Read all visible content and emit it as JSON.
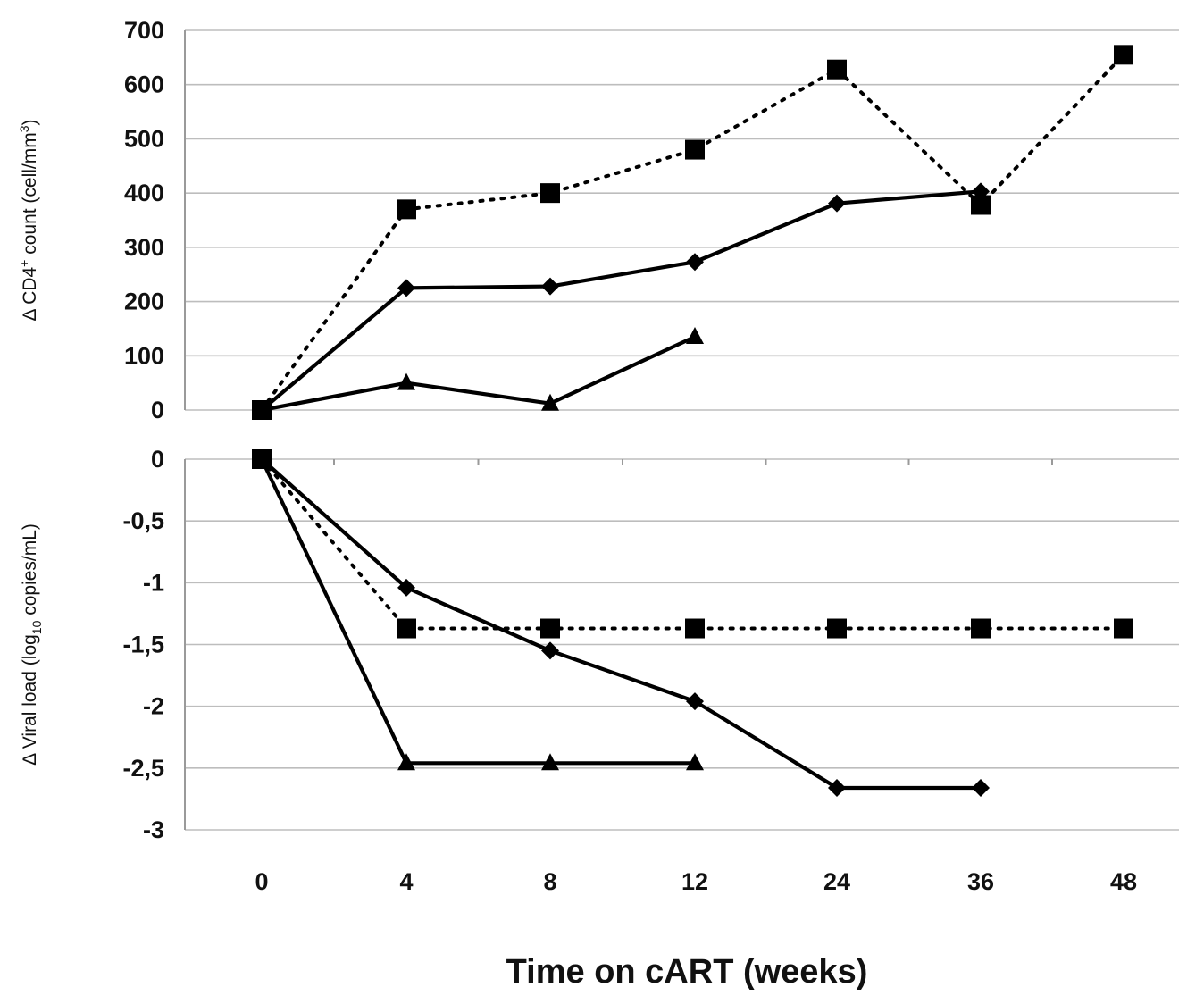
{
  "x_axis": {
    "title": "Time on cART (weeks)",
    "tick_labels": [
      "0",
      "4",
      "8",
      "12",
      "24",
      "36",
      "48"
    ]
  },
  "chart_data": [
    {
      "type": "line",
      "ylabel_parts": [
        "Δ CD4",
        "+",
        " count (cell/mm",
        "3",
        ")"
      ],
      "ylim": [
        0,
        700
      ],
      "yticks": [
        0,
        100,
        200,
        300,
        400,
        500,
        600,
        700
      ],
      "ytick_labels": [
        "0",
        "100",
        "200",
        "300",
        "400",
        "500",
        "600",
        "700"
      ],
      "x": [
        0,
        4,
        8,
        12,
        24,
        36,
        48
      ],
      "grid": true,
      "series": [
        {
          "marker": "square",
          "style": "dotted",
          "values": [
            0,
            370,
            400,
            480,
            628,
            378,
            655
          ]
        },
        {
          "marker": "diamond",
          "style": "solid",
          "values": [
            0,
            225,
            228,
            273,
            381,
            403,
            null
          ]
        },
        {
          "marker": "triangle",
          "style": "solid",
          "values": [
            0,
            50,
            12,
            135,
            null,
            null,
            null
          ]
        }
      ]
    },
    {
      "type": "line",
      "ylabel_parts": [
        "Δ Viral load (log",
        "10",
        "  copies/mL)"
      ],
      "ylim": [
        -3,
        0
      ],
      "yticks": [
        0,
        -0.5,
        -1,
        -1.5,
        -2,
        -2.5,
        -3
      ],
      "ytick_labels": [
        "0",
        "-0,5",
        "-1",
        "-1,5",
        "-2",
        "-2,5",
        "-3"
      ],
      "x": [
        0,
        4,
        8,
        12,
        24,
        36,
        48
      ],
      "grid": true,
      "series": [
        {
          "marker": "square",
          "style": "dotted",
          "values": [
            0,
            -1.37,
            -1.37,
            -1.37,
            -1.37,
            -1.37,
            -1.37
          ]
        },
        {
          "marker": "diamond",
          "style": "solid",
          "values": [
            0,
            -1.04,
            -1.55,
            -1.96,
            -2.66,
            -2.66,
            null
          ]
        },
        {
          "marker": "triangle",
          "style": "solid",
          "values": [
            0,
            -2.46,
            -2.46,
            -2.46,
            null,
            null,
            null
          ]
        }
      ]
    }
  ]
}
